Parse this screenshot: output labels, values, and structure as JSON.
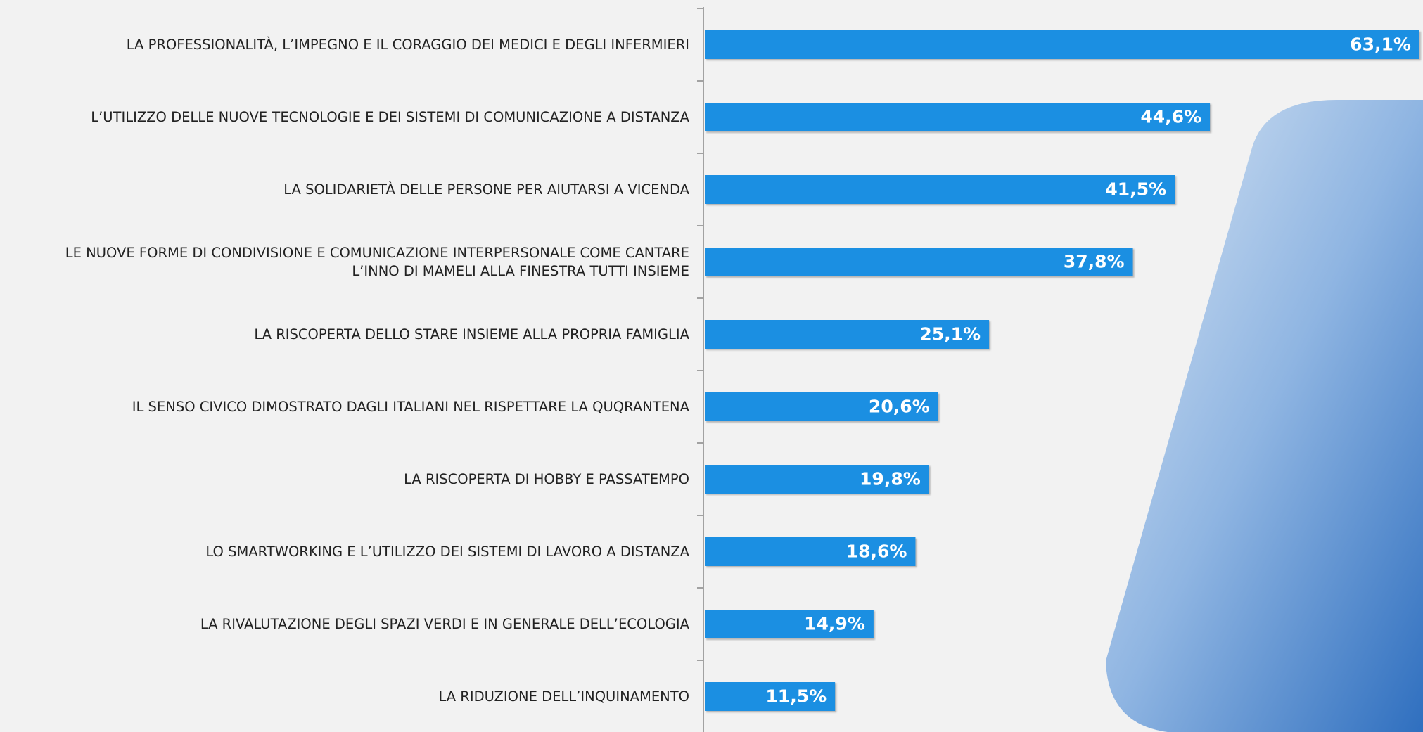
{
  "chart_data": {
    "type": "bar",
    "orientation": "horizontal",
    "color": "#1b8fe2",
    "categories": [
      "LA PROFESSIONALITÀ, L’IMPEGNO E IL CORAGGIO DEI MEDICI E DEGLI INFERMIERI",
      "L’UTILIZZO DELLE NUOVE TECNOLOGIE E DEI SISTEMI DI COMUNICAZIONE A DISTANZA",
      "LA SOLIDARIETÀ DELLE PERSONE PER AIUTARSI A VICENDA",
      "LE NUOVE FORME DI CONDIVISIONE E COMUNICAZIONE INTERPERSONALE COME CANTARE L’INNO DI MAMELI ALLA FINESTRA TUTTI INSIEME",
      "LA RISCOPERTA DELLO STARE INSIEME ALLA PROPRIA FAMIGLIA",
      "IL SENSO CIVICO DIMOSTRATO DAGLI ITALIANI NEL RISPETTARE LA QUQRANTENA",
      "LA RISCOPERTA DI HOBBY E PASSATEMPO",
      "LO SMARTWORKING E L’UTILIZZO DEI SISTEMI DI LAVORO A DISTANZA",
      "LA RIVALUTAZIONE DEGLI SPAZI VERDI E IN GENERALE DELL’ECOLOGIA",
      "LA RIDUZIONE DELL’INQUINAMENTO"
    ],
    "values": [
      63.1,
      44.6,
      41.5,
      37.8,
      25.1,
      20.6,
      19.8,
      18.6,
      14.9,
      11.5
    ],
    "value_labels": [
      "63,1%",
      "44,6%",
      "41,5%",
      "37,8%",
      "25,1%",
      "20,6%",
      "19,8%",
      "18,6%",
      "14,9%",
      "11,5%"
    ]
  }
}
